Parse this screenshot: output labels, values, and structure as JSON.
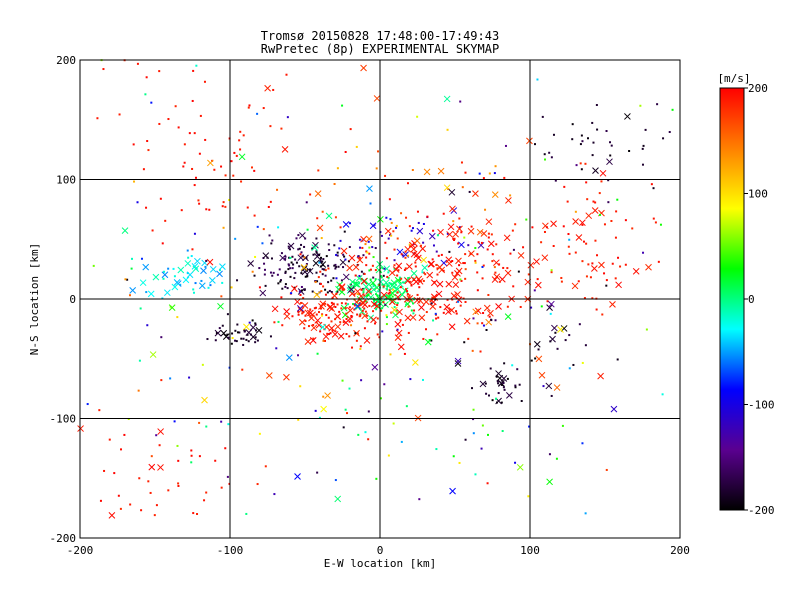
{
  "chart_data": {
    "type": "scatter",
    "title": "Tromsø 20150828 17:48:00-17:49:43",
    "subtitle": "RwPretec (8p) EXPERIMENTAL SKYMAP",
    "xlabel": "E-W location [km]",
    "ylabel": "N-S location [km]",
    "xlim": [
      -200,
      200
    ],
    "ylim": [
      -200,
      200
    ],
    "xticks": [
      -200,
      -100,
      0,
      100,
      200
    ],
    "yticks": [
      -200,
      -100,
      0,
      100,
      200
    ],
    "grid": true,
    "markers": [
      "dot",
      "x"
    ],
    "colorbar": {
      "label": "[m/s]",
      "min": -200,
      "max": 200,
      "ticks": [
        200,
        100,
        0,
        -100,
        -200
      ],
      "colors": [
        "#000000",
        "#5a0090",
        "#0000ff",
        "#00ffff",
        "#00ff00",
        "#ffff00",
        "#ff8000",
        "#ff0000"
      ]
    },
    "series": [
      {
        "clusters": [
          {
            "center": [
              -45,
              28
            ],
            "spread": [
              18,
              12
            ],
            "count": 150,
            "value_range": [
              -200,
              -160
            ],
            "x_fraction": 0.15
          },
          {
            "center": [
              -95,
              -28
            ],
            "spread": [
              12,
              5
            ],
            "count": 40,
            "value_range": [
              -200,
              -170
            ],
            "x_fraction": 0.2
          },
          {
            "center": [
              80,
              -72
            ],
            "spread": [
              8,
              9
            ],
            "count": 30,
            "value_range": [
              -200,
              -170
            ],
            "x_fraction": 0.3
          },
          {
            "center": [
              145,
              130
            ],
            "spread": [
              22,
              18
            ],
            "count": 35,
            "value_range": [
              -200,
              -170
            ],
            "x_fraction": 0.15
          },
          {
            "center": [
              120,
              -40
            ],
            "spread": [
              10,
              15
            ],
            "count": 16,
            "value_range": [
              -200,
              -170
            ],
            "x_fraction": 0.2
          },
          {
            "center": [
              0,
              5
            ],
            "spread": [
              12,
              9
            ],
            "count": 130,
            "value_range": [
              -10,
              30
            ],
            "x_fraction": 0.45
          },
          {
            "center": [
              -130,
              18
            ],
            "spread": [
              15,
              9
            ],
            "count": 45,
            "value_range": [
              -60,
              -10
            ],
            "x_fraction": 0.55
          },
          {
            "center": [
              15,
              50
            ],
            "spread": [
              25,
              12
            ],
            "count": 45,
            "value_range": [
              -130,
              -90
            ],
            "x_fraction": 0.25
          },
          {
            "center": [
              25,
              10
            ],
            "spread": [
              32,
              22
            ],
            "count": 190,
            "value_range": [
              180,
              200
            ],
            "x_fraction": 0.35
          },
          {
            "center": [
              -30,
              -15
            ],
            "spread": [
              18,
              12
            ],
            "count": 120,
            "value_range": [
              180,
              200
            ],
            "x_fraction": 0.3
          },
          {
            "center": [
              60,
              40
            ],
            "spread": [
              40,
              30
            ],
            "count": 85,
            "value_range": [
              180,
              200
            ],
            "x_fraction": 0.25
          },
          {
            "center": [
              150,
              50
            ],
            "spread": [
              25,
              25
            ],
            "count": 60,
            "value_range": [
              180,
              200
            ],
            "x_fraction": 0.3
          },
          {
            "center": [
              -110,
              120
            ],
            "spread": [
              35,
              40
            ],
            "count": 75,
            "value_range": [
              180,
              200
            ],
            "x_fraction": 0.1
          },
          {
            "center": [
              -150,
              -150
            ],
            "spread": [
              30,
              25
            ],
            "count": 45,
            "value_range": [
              180,
              200
            ],
            "x_fraction": 0.05
          },
          {
            "center": [
              30,
              80
            ],
            "spread": [
              40,
              25
            ],
            "count": 45,
            "value_range": [
              100,
              200
            ],
            "x_fraction": 0.25
          },
          {
            "center": [
              0,
              -30
            ],
            "spread": [
              80,
              55
            ],
            "count": 140,
            "value_range": [
              -200,
              200
            ],
            "x_fraction": 0.2
          },
          {
            "center": [
              0,
              0
            ],
            "spread": [
              130,
              130
            ],
            "count": 180,
            "value_range": [
              -200,
              200
            ],
            "x_fraction": 0.15
          }
        ]
      }
    ]
  }
}
